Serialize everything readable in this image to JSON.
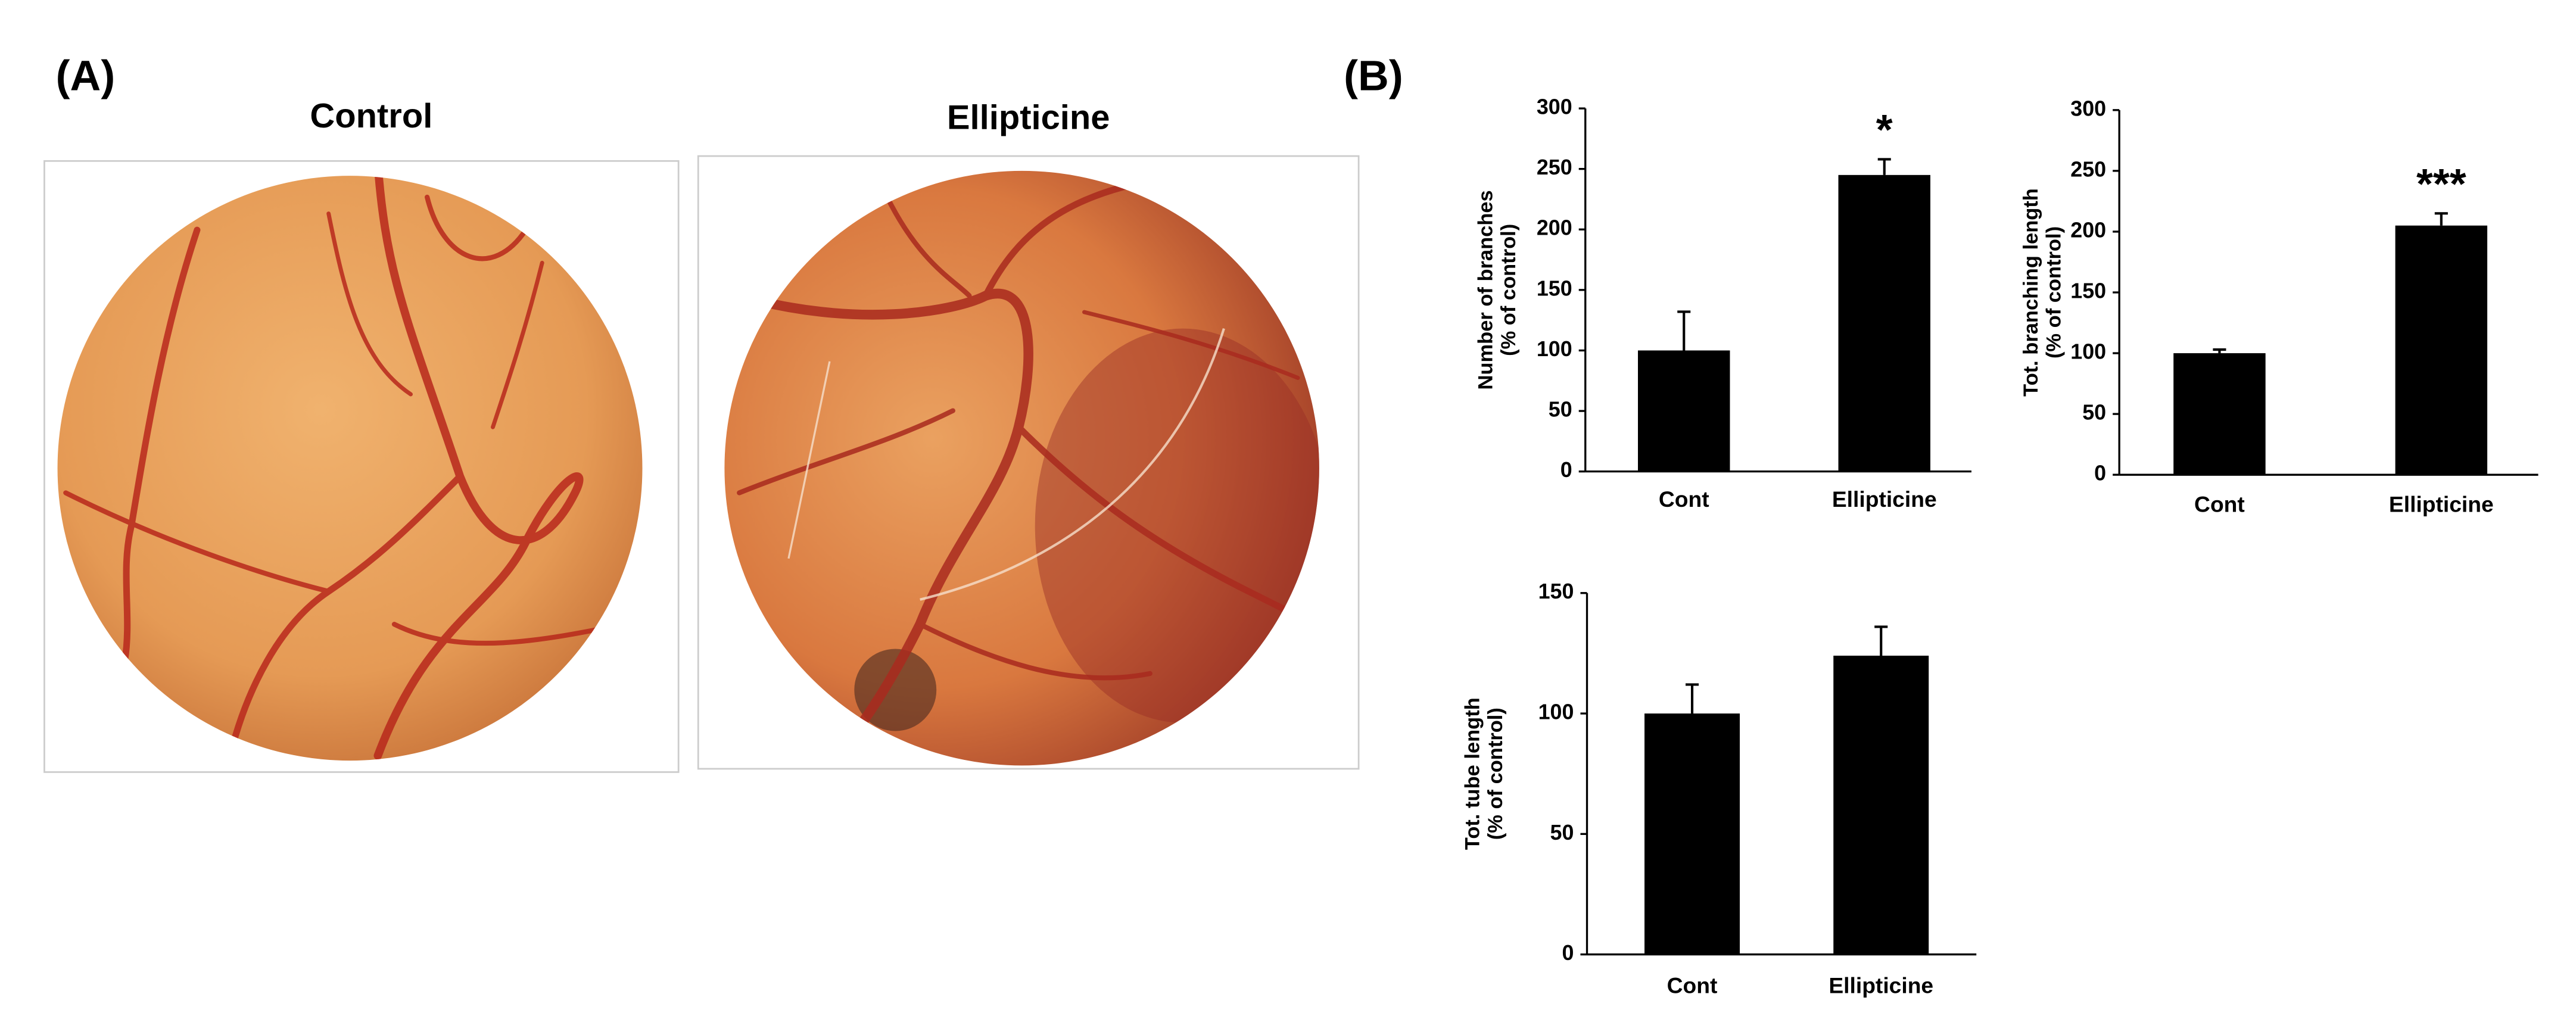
{
  "panel_labels": [
    "(A)",
    "(B)"
  ],
  "photos": [
    {
      "title": "Control"
    },
    {
      "title": "Ellipticine"
    }
  ],
  "chart_data": [
    {
      "type": "bar",
      "categories": [
        "Cont",
        "Ellipticine"
      ],
      "values": [
        100,
        245
      ],
      "errors": [
        32,
        13
      ],
      "significance": [
        null,
        "*"
      ],
      "color": "#000000",
      "ylabel": [
        "Number of branches",
        "(% of control)"
      ],
      "ylim": [
        0,
        300
      ],
      "yticks": [
        0,
        50,
        100,
        150,
        200,
        250,
        300
      ]
    },
    {
      "type": "bar",
      "categories": [
        "Cont",
        "Ellipticine"
      ],
      "values": [
        100,
        205
      ],
      "errors": [
        3,
        10
      ],
      "significance": [
        null,
        "***"
      ],
      "color": "#000000",
      "ylabel": [
        "Tot. branching length",
        "(% of control)"
      ],
      "ylim": [
        0,
        300
      ],
      "yticks": [
        0,
        50,
        100,
        150,
        200,
        250,
        300
      ]
    },
    {
      "type": "bar",
      "categories": [
        "Cont",
        "Ellipticine"
      ],
      "values": [
        100,
        124
      ],
      "errors": [
        12,
        12
      ],
      "significance": [
        null,
        null
      ],
      "color": "#000000",
      "ylabel": [
        "Tot. tube length",
        "(% of control)"
      ],
      "ylim": [
        0,
        150
      ],
      "yticks": [
        0,
        50,
        100,
        150
      ]
    }
  ]
}
